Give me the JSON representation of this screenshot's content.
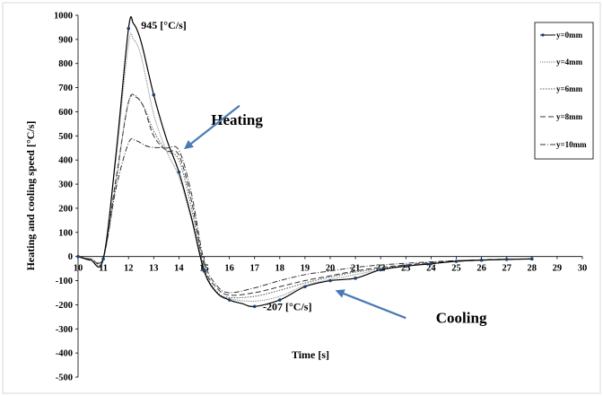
{
  "chart_data": {
    "type": "line",
    "xlabel": "Time [s]",
    "ylabel": "Heating and cooling speed  [°C/s]",
    "xlim": [
      10,
      30
    ],
    "ylim": [
      -500,
      1000
    ],
    "x_ticks": [
      "10",
      "11",
      "12",
      "13",
      "14",
      "15",
      "16",
      "17",
      "18",
      "19",
      "20",
      "21",
      "22",
      "23",
      "24",
      "25",
      "26",
      "27",
      "28",
      "29",
      "30"
    ],
    "y_ticks": [
      "1000",
      "900",
      "800",
      "700",
      "600",
      "500",
      "400",
      "300",
      "200",
      "100",
      "0",
      "-100",
      "-200",
      "-300",
      "-400",
      "-500"
    ],
    "grid": false,
    "legend_position": "top-right",
    "series": [
      {
        "name": "y=0mm",
        "color": "#000000",
        "dash": "solid",
        "markers": true,
        "x": [
          10,
          10.5,
          11,
          11.5,
          12,
          12.2,
          12.5,
          13,
          13.5,
          14,
          14.5,
          15,
          15.5,
          16,
          16.5,
          17,
          18,
          19,
          20,
          21,
          22,
          23,
          24,
          25,
          26,
          27,
          28
        ],
        "y": [
          0,
          -15,
          -10,
          420,
          945,
          965,
          890,
          670,
          490,
          350,
          160,
          -60,
          -150,
          -180,
          -195,
          -207,
          -180,
          -125,
          -100,
          -90,
          -55,
          -40,
          -30,
          -20,
          -15,
          -12,
          -10
        ]
      },
      {
        "name": "y=4mm",
        "color": "#7f7f7f",
        "dash": "1,1",
        "markers": false,
        "x": [
          10,
          10.5,
          11,
          11.5,
          12,
          12.2,
          12.5,
          13,
          13.5,
          14,
          14.5,
          15,
          15.5,
          16,
          17,
          18,
          19,
          20,
          21,
          22,
          23,
          24,
          25,
          26,
          27,
          28
        ],
        "y": [
          0,
          -10,
          -5,
          400,
          880,
          900,
          830,
          590,
          440,
          330,
          150,
          -60,
          -150,
          -175,
          -185,
          -165,
          -120,
          -95,
          -75,
          -55,
          -40,
          -30,
          -20,
          -15,
          -12,
          -10
        ]
      },
      {
        "name": "y=6mm",
        "color": "#555555",
        "dash": "1.5,1.5",
        "markers": false,
        "x": [
          10,
          10.5,
          11,
          11.5,
          12,
          12.5,
          13,
          13.5,
          14,
          14.5,
          15,
          15.5,
          16,
          17,
          18,
          19,
          20,
          21,
          22,
          23,
          24,
          25,
          26,
          27,
          28
        ],
        "y": [
          0,
          -10,
          -5,
          300,
          640,
          640,
          520,
          440,
          400,
          200,
          -50,
          -145,
          -170,
          -165,
          -140,
          -110,
          -85,
          -65,
          -50,
          -38,
          -28,
          -20,
          -15,
          -12,
          -10
        ]
      },
      {
        "name": "y=8mm",
        "color": "#333333",
        "dash": "6,3",
        "markers": false,
        "x": [
          10,
          10.5,
          11,
          11.5,
          12,
          12.3,
          12.6,
          13,
          13.5,
          14,
          14.5,
          15,
          15.5,
          16,
          17,
          18,
          19,
          20,
          21,
          22,
          23,
          24,
          25,
          26,
          27,
          28
        ],
        "y": [
          0,
          -10,
          -5,
          320,
          640,
          660,
          620,
          500,
          440,
          420,
          230,
          -40,
          -130,
          -160,
          -150,
          -125,
          -100,
          -80,
          -60,
          -45,
          -35,
          -25,
          -18,
          -14,
          -11,
          -10
        ]
      },
      {
        "name": "y=10mm",
        "color": "#333333",
        "dash": "6,2,1,2",
        "markers": false,
        "x": [
          10,
          10.5,
          11,
          11.5,
          12,
          12.3,
          12.8,
          13.5,
          14,
          14.5,
          15,
          15.5,
          16,
          17,
          18,
          19,
          20,
          21,
          22,
          23,
          24,
          25,
          26,
          27,
          28
        ],
        "y": [
          0,
          -10,
          -5,
          280,
          470,
          480,
          455,
          450,
          440,
          260,
          -20,
          -120,
          -150,
          -130,
          -100,
          -75,
          -60,
          -45,
          -35,
          -28,
          -22,
          -17,
          -14,
          -11,
          -10
        ]
      }
    ],
    "annotations": [
      {
        "text": "945 [°C/s]",
        "x": 13.4,
        "y": 945,
        "size": "small"
      },
      {
        "text": "-207 [°C/s]",
        "x": 18.3,
        "y": -222,
        "size": "small"
      },
      {
        "text": "Heating",
        "x": 16.3,
        "y": 545,
        "size": "large"
      },
      {
        "text": "Cooling",
        "x": 25.2,
        "y": -275,
        "size": "large"
      }
    ],
    "arrows": [
      {
        "label": "Heating",
        "from": [
          16.4,
          625
        ],
        "to": [
          14.2,
          445
        ]
      },
      {
        "label": "Cooling",
        "from": [
          23.0,
          -255
        ],
        "to": [
          20.2,
          -140
        ]
      }
    ]
  }
}
